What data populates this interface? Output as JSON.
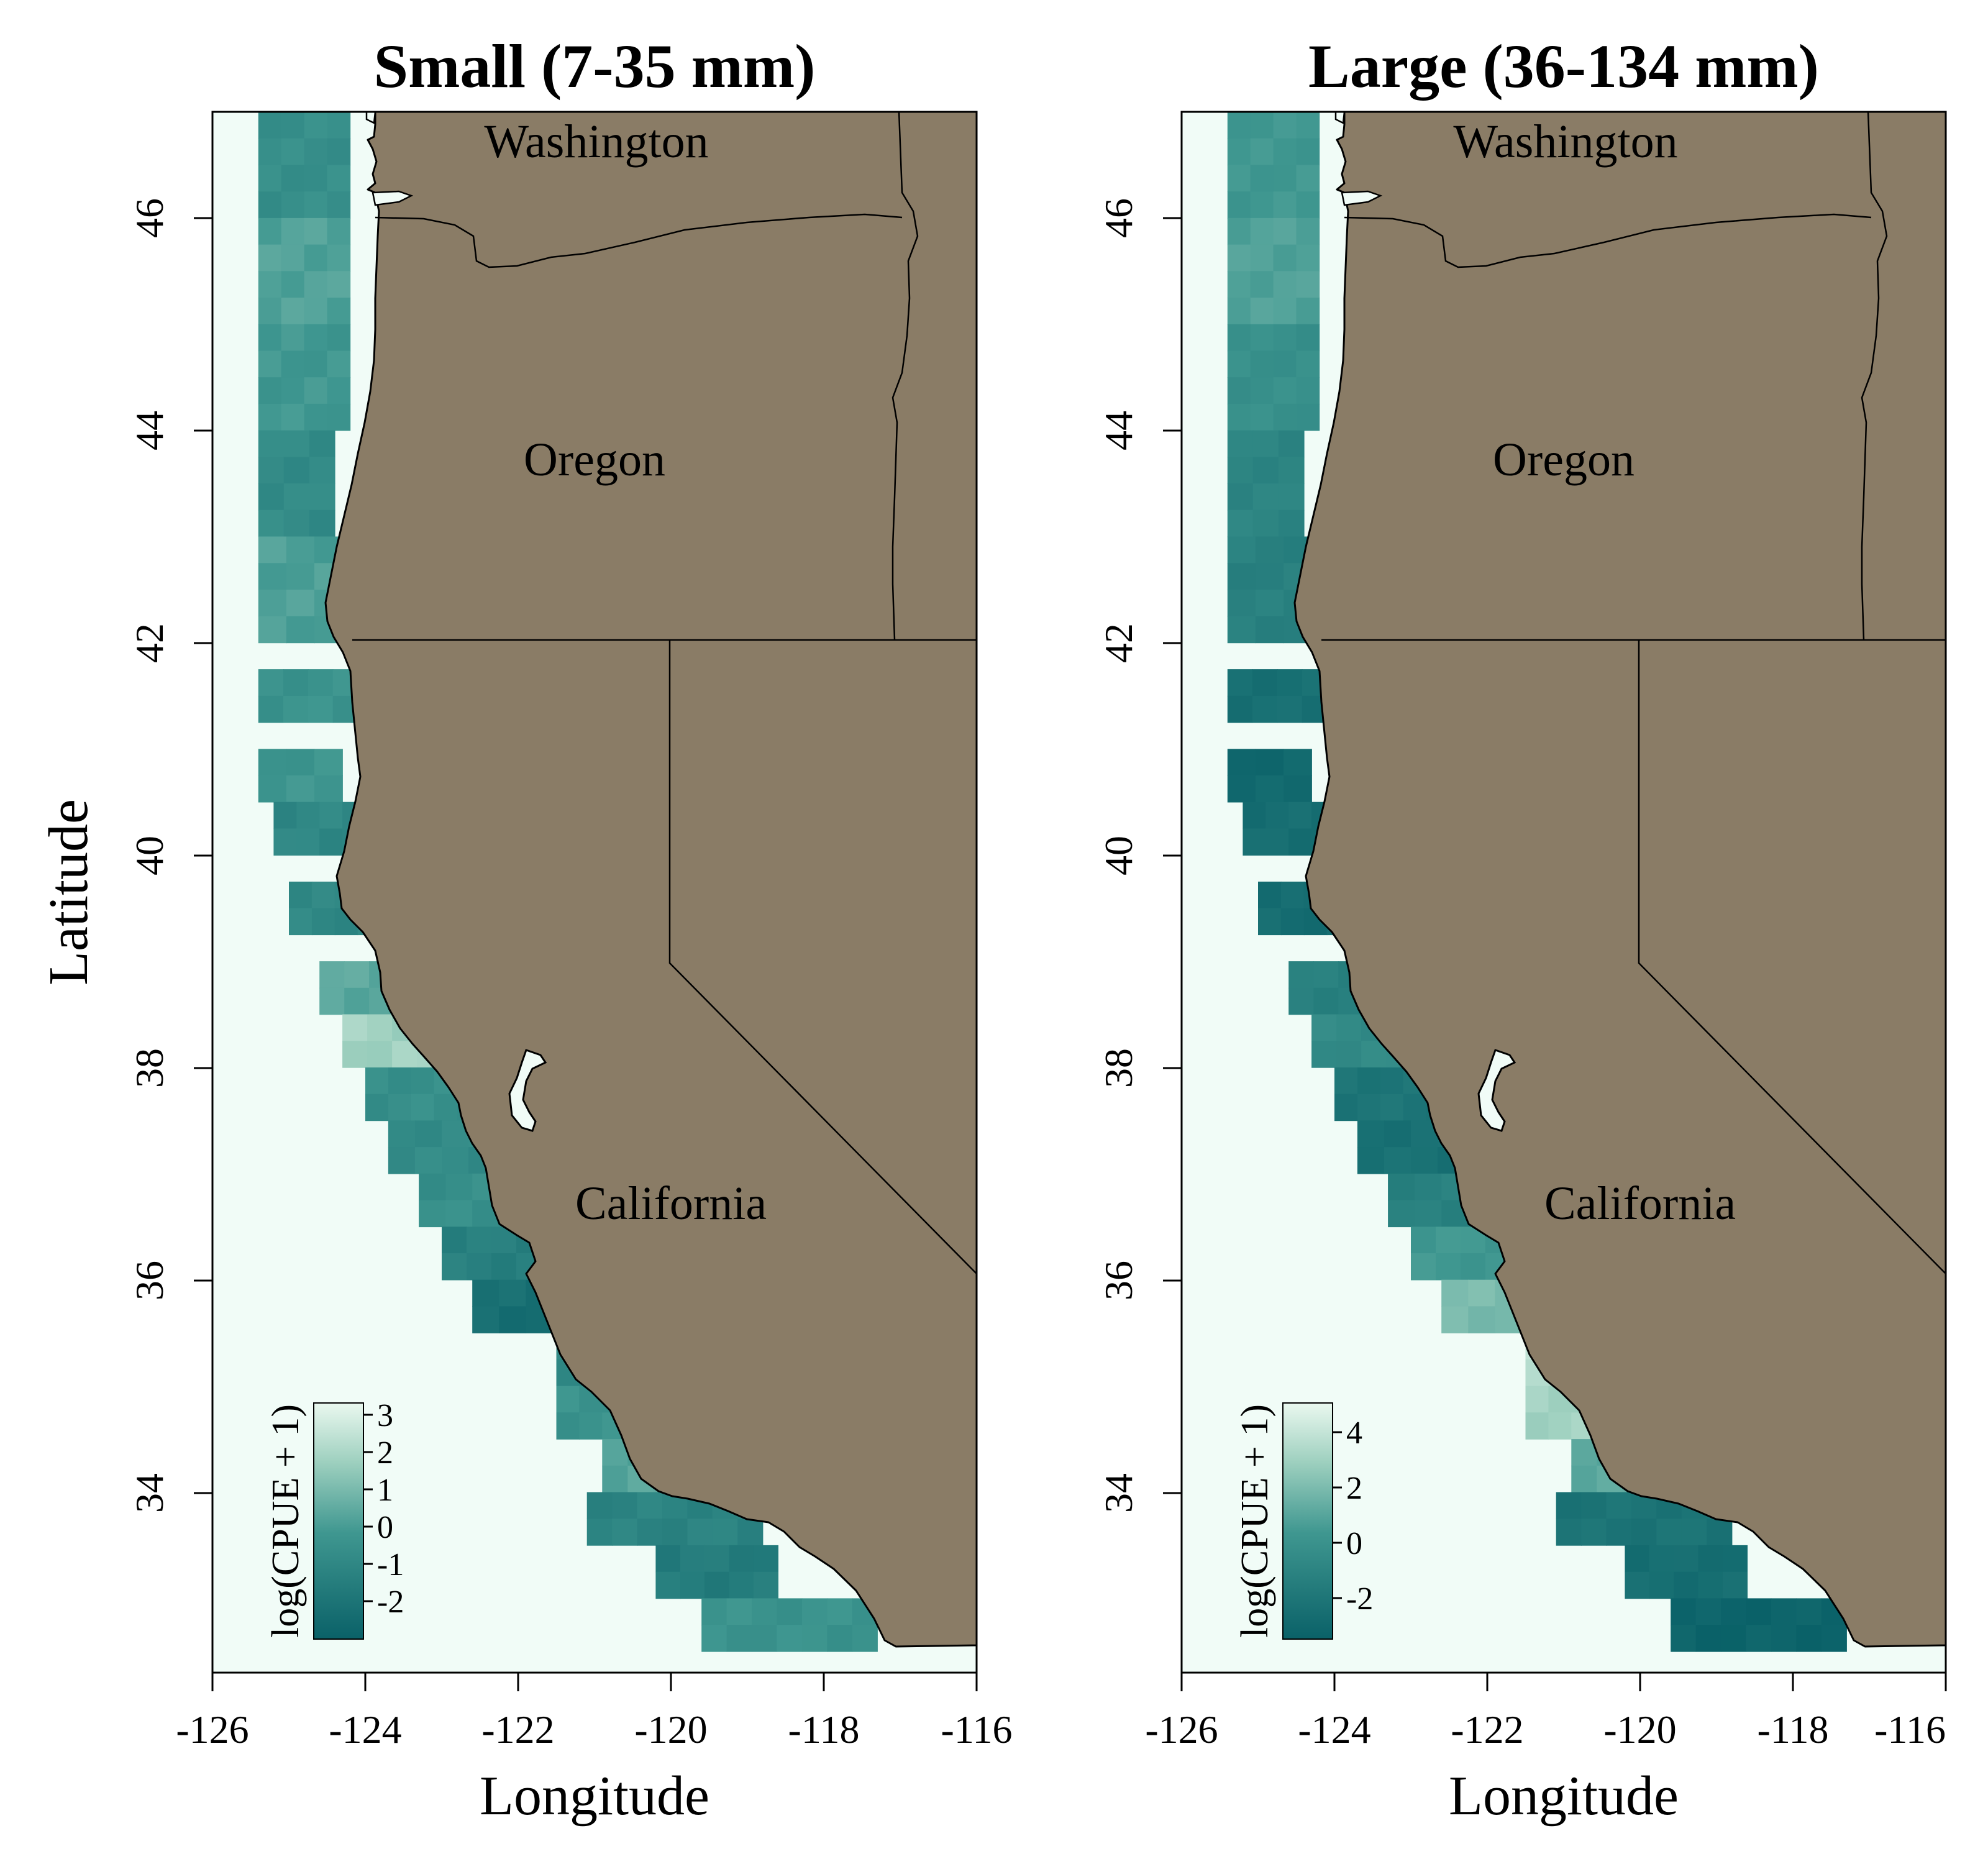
{
  "figure": {
    "xlabel": "Longitude",
    "ylabel": "Latitude",
    "x_ticks": [
      "-126",
      "-124",
      "-122",
      "-120",
      "-118",
      "-116"
    ],
    "y_ticks": [
      "34",
      "36",
      "38",
      "40",
      "42",
      "44",
      "46"
    ],
    "colors": {
      "land": "#8a7c66",
      "ocean": "#f1fcf7",
      "low": "#0a6168",
      "high": "#eaf8ef"
    }
  },
  "map_labels": {
    "washington": "Washington",
    "oregon": "Oregon",
    "california": "California"
  },
  "panels": [
    {
      "title": "Small (7-35 mm)",
      "legend": {
        "title": "log(CPUE + 1)",
        "ticks": [
          "3",
          "2",
          "1",
          "0",
          "-1",
          "-2"
        ]
      }
    },
    {
      "title": "Large (36-134 mm)",
      "legend": {
        "title": "log(CPUE + 1)",
        "ticks": [
          "4",
          "2",
          "0",
          "-2"
        ]
      }
    }
  ],
  "chart_data": [
    {
      "type": "heatmap",
      "title": "Small (7-35 mm)",
      "xlabel": "Longitude",
      "ylabel": "Latitude",
      "xlim": [
        -126,
        -116
      ],
      "ylim": [
        32.3,
        47
      ],
      "colorbar": {
        "label": "log(CPUE + 1)",
        "range": [
          -3,
          3.3
        ]
      },
      "cells": [
        {
          "lat": 46.5,
          "lon_min": -125.4,
          "lon_max": -124.2,
          "value": -0.6
        },
        {
          "lat": 45.5,
          "lon_min": -125.4,
          "lon_max": -124.2,
          "value": 0.2
        },
        {
          "lat": 44.5,
          "lon_min": -125.4,
          "lon_max": -124.2,
          "value": -0.2
        },
        {
          "lat": 43.5,
          "lon_min": -125.4,
          "lon_max": -124.4,
          "value": -0.8
        },
        {
          "lat": 42.5,
          "lon_min": -125.4,
          "lon_max": -124.3,
          "value": 0.1
        },
        {
          "lat": 41.5,
          "lon_min": -125.4,
          "lon_max": -124.1,
          "value": -0.4
        },
        {
          "lat": 40.75,
          "lon_min": -125.4,
          "lon_max": -124.3,
          "value": -0.3
        },
        {
          "lat": 40.25,
          "lon_min": -125.2,
          "lon_max": -124.0,
          "value": -1.0
        },
        {
          "lat": 39.5,
          "lon_min": -125.0,
          "lon_max": -123.8,
          "value": -1.0
        },
        {
          "lat": 38.75,
          "lon_min": -124.6,
          "lon_max": -123.3,
          "value": 0.4
        },
        {
          "lat": 38.25,
          "lon_min": -124.3,
          "lon_max": -123.0,
          "value": 1.8
        },
        {
          "lat": 37.75,
          "lon_min": -124.0,
          "lon_max": -122.5,
          "value": -0.6
        },
        {
          "lat": 37.25,
          "lon_min": -123.7,
          "lon_max": -122.3,
          "value": -0.8
        },
        {
          "lat": 36.75,
          "lon_min": -123.3,
          "lon_max": -121.9,
          "value": -0.6
        },
        {
          "lat": 36.25,
          "lon_min": -123.0,
          "lon_max": -121.7,
          "value": -1.4
        },
        {
          "lat": 35.75,
          "lon_min": -122.6,
          "lon_max": -121.2,
          "value": -2.3
        },
        {
          "lat": 35.25,
          "lon_min": -121.5,
          "lon_max": -120.8,
          "value": -1.0
        },
        {
          "lat": 34.75,
          "lon_min": -121.5,
          "lon_max": -120.6,
          "value": -0.4
        },
        {
          "lat": 34.25,
          "lon_min": -120.9,
          "lon_max": -119.9,
          "value": 0.3
        },
        {
          "lat": 33.75,
          "lon_min": -121.1,
          "lon_max": -118.8,
          "value": -1.2
        },
        {
          "lat": 33.25,
          "lon_min": -120.2,
          "lon_max": -118.6,
          "value": -1.6
        },
        {
          "lat": 32.75,
          "lon_min": -119.6,
          "lon_max": -117.3,
          "value": -0.4
        }
      ]
    },
    {
      "type": "heatmap",
      "title": "Large (36-134 mm)",
      "xlabel": "Longitude",
      "ylabel": "Latitude",
      "xlim": [
        -126,
        -116
      ],
      "ylim": [
        32.3,
        47
      ],
      "colorbar": {
        "label": "log(CPUE + 1)",
        "range": [
          -3.5,
          5
        ]
      },
      "cells": [
        {
          "lat": 46.5,
          "lon_min": -125.4,
          "lon_max": -124.2,
          "value": 0.3
        },
        {
          "lat": 45.5,
          "lon_min": -125.4,
          "lon_max": -124.2,
          "value": 0.8
        },
        {
          "lat": 44.5,
          "lon_min": -125.4,
          "lon_max": -124.2,
          "value": -0.2
        },
        {
          "lat": 43.5,
          "lon_min": -125.4,
          "lon_max": -124.4,
          "value": -1.0
        },
        {
          "lat": 42.5,
          "lon_min": -125.4,
          "lon_max": -124.3,
          "value": -1.3
        },
        {
          "lat": 41.5,
          "lon_min": -125.4,
          "lon_max": -124.1,
          "value": -2.5
        },
        {
          "lat": 40.75,
          "lon_min": -125.4,
          "lon_max": -124.3,
          "value": -3.0
        },
        {
          "lat": 40.25,
          "lon_min": -125.2,
          "lon_max": -124.0,
          "value": -2.6
        },
        {
          "lat": 39.5,
          "lon_min": -125.0,
          "lon_max": -123.8,
          "value": -2.7
        },
        {
          "lat": 38.75,
          "lon_min": -124.6,
          "lon_max": -123.3,
          "value": -1.3
        },
        {
          "lat": 38.25,
          "lon_min": -124.3,
          "lon_max": -123.0,
          "value": -0.6
        },
        {
          "lat": 37.75,
          "lon_min": -124.0,
          "lon_max": -122.5,
          "value": -2.1
        },
        {
          "lat": 37.25,
          "lon_min": -123.7,
          "lon_max": -122.3,
          "value": -2.4
        },
        {
          "lat": 36.75,
          "lon_min": -123.3,
          "lon_max": -121.9,
          "value": -1.3
        },
        {
          "lat": 36.25,
          "lon_min": -123.0,
          "lon_max": -121.7,
          "value": 0.3
        },
        {
          "lat": 35.75,
          "lon_min": -122.6,
          "lon_max": -121.2,
          "value": 1.9
        },
        {
          "lat": 35.25,
          "lon_min": -121.5,
          "lon_max": -120.8,
          "value": 3.6
        },
        {
          "lat": 34.75,
          "lon_min": -121.5,
          "lon_max": -120.6,
          "value": 3.0
        },
        {
          "lat": 34.25,
          "lon_min": -120.9,
          "lon_max": -119.9,
          "value": 1.1
        },
        {
          "lat": 33.75,
          "lon_min": -121.1,
          "lon_max": -118.8,
          "value": -2.2
        },
        {
          "lat": 33.25,
          "lon_min": -120.2,
          "lon_max": -118.6,
          "value": -2.6
        },
        {
          "lat": 32.75,
          "lon_min": -119.6,
          "lon_max": -117.3,
          "value": -3.3
        }
      ]
    }
  ]
}
